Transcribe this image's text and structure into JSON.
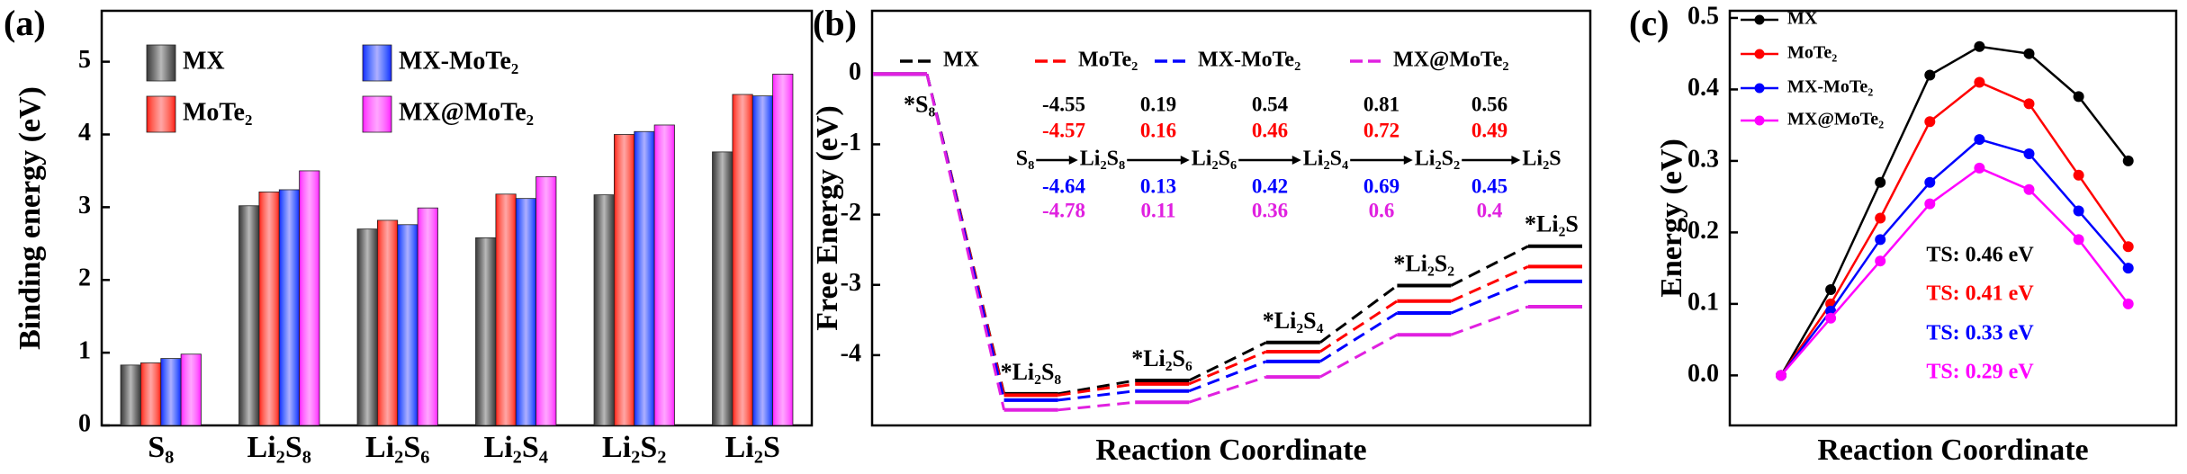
{
  "chart_data": [
    {
      "type": "bar",
      "label": "(a)",
      "ylabel": "Binding energy (eV)",
      "categories": [
        "S₈",
        "Li₂S₈",
        "Li₂S₆",
        "Li₂S₄",
        "Li₂S₂",
        "Li₂S"
      ],
      "series": [
        {
          "name": "MX",
          "color": "#3a3a3a",
          "values": [
            0.83,
            3.02,
            2.7,
            2.58,
            3.17,
            3.76
          ]
        },
        {
          "name": "MoTe₂",
          "color": "#ff0000",
          "values": [
            0.86,
            3.21,
            2.82,
            3.18,
            4.0,
            4.55
          ]
        },
        {
          "name": "MX-MoTe₂",
          "color": "#1a1aff",
          "values": [
            0.92,
            3.24,
            2.76,
            3.12,
            4.04,
            4.53
          ]
        },
        {
          "name": "MX@MoTe₂",
          "color": "#ff00ff",
          "values": [
            0.98,
            3.5,
            2.99,
            3.42,
            4.13,
            4.83
          ]
        }
      ],
      "ylim": [
        0,
        5.7
      ],
      "yticks": [
        0,
        1,
        2,
        3,
        4,
        5
      ]
    },
    {
      "type": "energy_profile",
      "label": "(b)",
      "ylabel": "Free Energy (eV)",
      "xlabel": "Reaction Coordinate",
      "categories": [
        "*S₈",
        "*Li₂S₈",
        "*Li₂S₆",
        "*Li₂S₄",
        "*Li₂S₂",
        "*Li₂S"
      ],
      "scheme": [
        "S₈",
        "Li₂S₈",
        "Li₂S₆",
        "Li₂S₄",
        "Li₂S₂",
        "Li₂S"
      ],
      "series": [
        {
          "name": "MX",
          "color": "#000000",
          "values": [
            0,
            -4.55,
            -4.36,
            -3.82,
            -3.01,
            -2.45
          ],
          "step_labels": [
            -4.55,
            0.19,
            0.54,
            0.81,
            0.56
          ]
        },
        {
          "name": "MoTe₂",
          "color": "#ff0000",
          "values": [
            0,
            -4.57,
            -4.41,
            -3.95,
            -3.23,
            -2.74
          ],
          "step_labels": [
            -4.57,
            0.16,
            0.46,
            0.72,
            0.49
          ]
        },
        {
          "name": "MX-MoTe₂",
          "color": "#0000ff",
          "values": [
            0,
            -4.64,
            -4.51,
            -4.09,
            -3.4,
            -2.95
          ],
          "step_labels": [
            -4.64,
            0.13,
            0.42,
            0.69,
            0.45
          ]
        },
        {
          "name": "MX@MoTe₂",
          "color": "#e020e0",
          "values": [
            0,
            -4.78,
            -4.67,
            -4.31,
            -3.71,
            -3.31
          ],
          "step_labels": [
            -4.78,
            0.11,
            0.36,
            0.6,
            0.4
          ]
        }
      ],
      "ylim": [
        -5,
        0.9
      ],
      "yticks": [
        0,
        -1,
        -2,
        -3,
        -4
      ]
    },
    {
      "type": "line",
      "label": "(c)",
      "ylabel": "Energy (eV)",
      "xlabel": "Reaction Coordinate",
      "categories": [
        null,
        null,
        null,
        null,
        null,
        null,
        null,
        null
      ],
      "series": [
        {
          "name": "MX",
          "color": "#000000",
          "values": [
            0,
            0.12,
            0.27,
            0.42,
            0.46,
            0.45,
            0.39,
            0.3
          ]
        },
        {
          "name": "MoTe₂",
          "color": "#ff0000",
          "values": [
            0,
            0.1,
            0.22,
            0.355,
            0.41,
            0.38,
            0.28,
            0.18
          ]
        },
        {
          "name": "MX-MoTe₂",
          "color": "#0000ff",
          "values": [
            0,
            0.09,
            0.19,
            0.27,
            0.33,
            0.31,
            0.23,
            0.15
          ]
        },
        {
          "name": "MX@MoTe₂",
          "color": "#ff00ff",
          "values": [
            0,
            0.08,
            0.16,
            0.24,
            0.29,
            0.26,
            0.19,
            0.1
          ]
        }
      ],
      "annotations": [
        {
          "text": "TS: 0.46 eV",
          "color": "#000000"
        },
        {
          "text": "TS: 0.41 eV",
          "color": "#ff0000"
        },
        {
          "text": "TS: 0.33 eV",
          "color": "#0000ff"
        },
        {
          "text": "TS: 0.29 eV",
          "color": "#ff00ff"
        }
      ],
      "ylim": [
        -0.07,
        0.51
      ],
      "yticks": [
        {
          "value": 0,
          "label": "0.0"
        },
        0.1,
        0.2,
        0.3,
        0.4,
        0.5
      ]
    }
  ]
}
